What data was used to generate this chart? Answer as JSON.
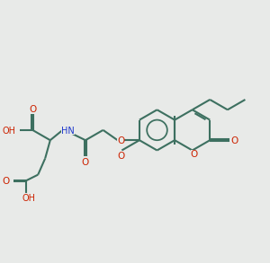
{
  "bg_color": "#e8eae8",
  "bond_color": "#3d7060",
  "o_color": "#cc2200",
  "n_color": "#1a35cc",
  "lw": 1.5,
  "dg": 0.035,
  "bl": 1.0
}
